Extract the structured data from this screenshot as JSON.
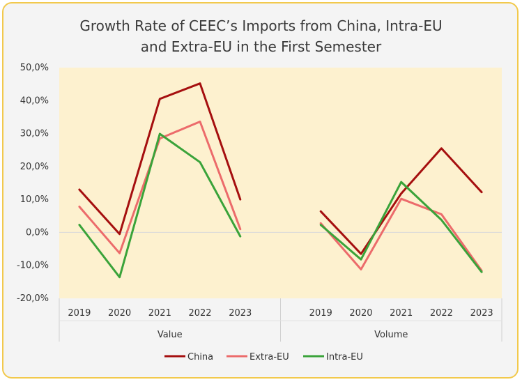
{
  "chart_data": {
    "type": "line",
    "title_line1": "Growth Rate of CEEC’s Imports from China, Intra-EU",
    "title_line2": "and Extra-EU in the First Semester",
    "ylim": [
      -20,
      50
    ],
    "y_ticks": [
      50,
      40,
      30,
      20,
      10,
      0,
      -10,
      -20
    ],
    "y_tick_labels": [
      "50,0%",
      "40,0%",
      "30,0%",
      "20,0%",
      "10,0%",
      "0,0%",
      "-10,0%",
      "-20,0%"
    ],
    "groups": [
      {
        "label": "Value",
        "categories": [
          "2019",
          "2020",
          "2021",
          "2022",
          "2023"
        ]
      },
      {
        "label": "Volume",
        "categories": [
          "2019",
          "2020",
          "2021",
          "2022",
          "2023"
        ]
      }
    ],
    "series": [
      {
        "name": "China",
        "color": "#a50f0f",
        "values": [
          [
            13.0,
            -0.5,
            40.5,
            45.2,
            10.0
          ],
          [
            6.4,
            -6.5,
            11.8,
            25.5,
            12.2
          ]
        ]
      },
      {
        "name": "Extra-EU",
        "color": "#ec6b6b",
        "values": [
          [
            7.8,
            -6.3,
            28.5,
            33.6,
            1.0
          ],
          [
            2.8,
            -11.2,
            10.2,
            5.5,
            -11.6
          ]
        ]
      },
      {
        "name": "Intra-EU",
        "color": "#3aa33a",
        "values": [
          [
            2.3,
            -13.6,
            29.9,
            21.3,
            -1.2
          ],
          [
            2.3,
            -8.2,
            15.3,
            3.8,
            -12.0
          ]
        ]
      }
    ],
    "plot_background": "#fdf1cf",
    "grid": false,
    "legend_position": "bottom"
  }
}
